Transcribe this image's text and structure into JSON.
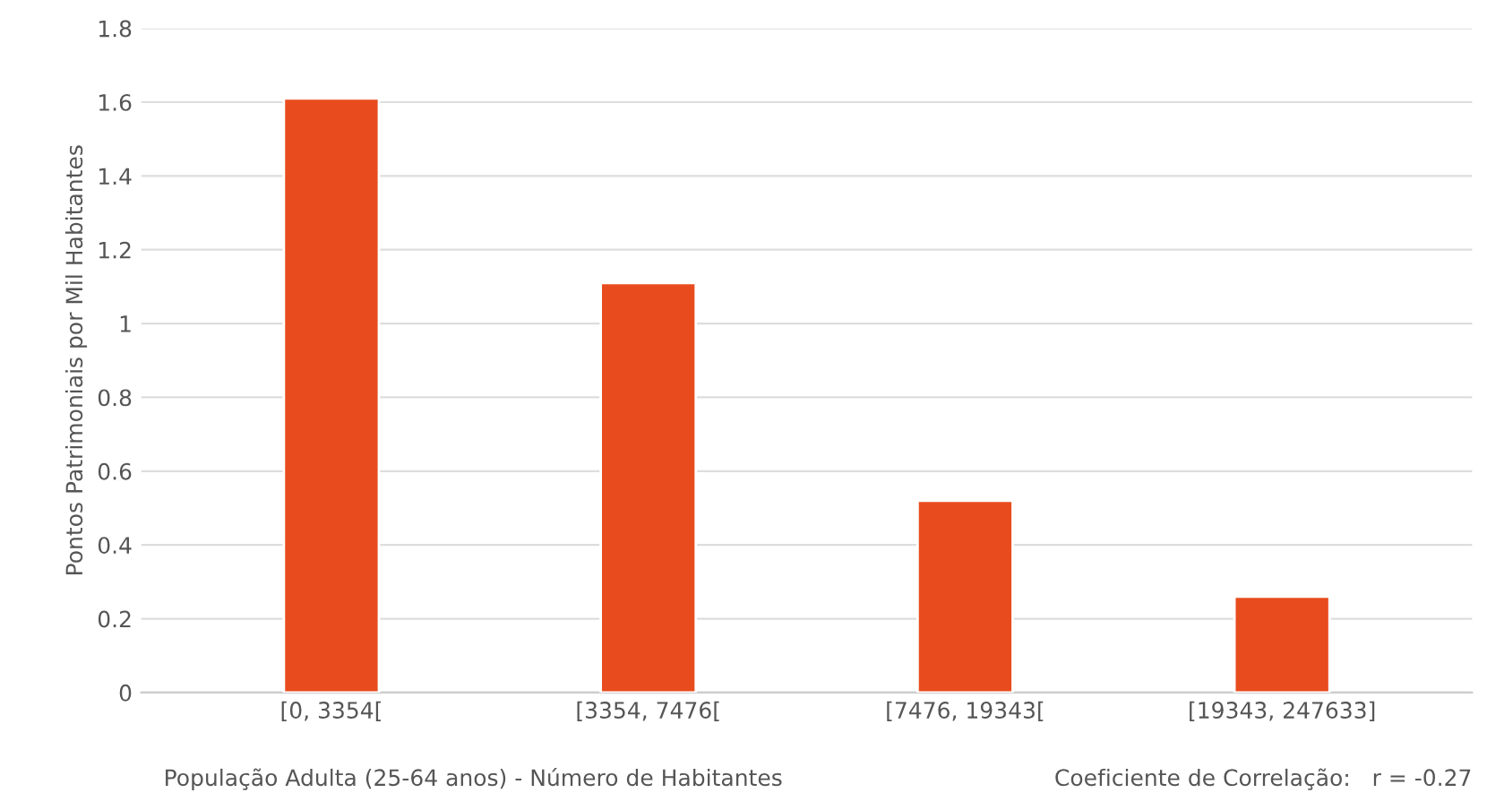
{
  "chart_data": {
    "type": "bar",
    "categories": [
      "[0, 3354[",
      "[3354, 7476[",
      "[7476, 19343[",
      "[19343, 247633]"
    ],
    "values": [
      1.61,
      1.11,
      0.52,
      0.26
    ],
    "color": "#e84c1e",
    "ylabel": "Pontos Patrimoniais por Mil Habitantes",
    "xlabel": "População Adulta (25-64 anos) - Número de Habitantes",
    "annotations": [
      "Coeficiente de Correlação:   r = -0.27"
    ],
    "ylim": [
      0,
      1.8
    ],
    "yticks": [
      0,
      0.2,
      0.4,
      0.6,
      0.8,
      1,
      1.2,
      1.4,
      1.6,
      1.8
    ],
    "grid": "y",
    "legend": false
  }
}
